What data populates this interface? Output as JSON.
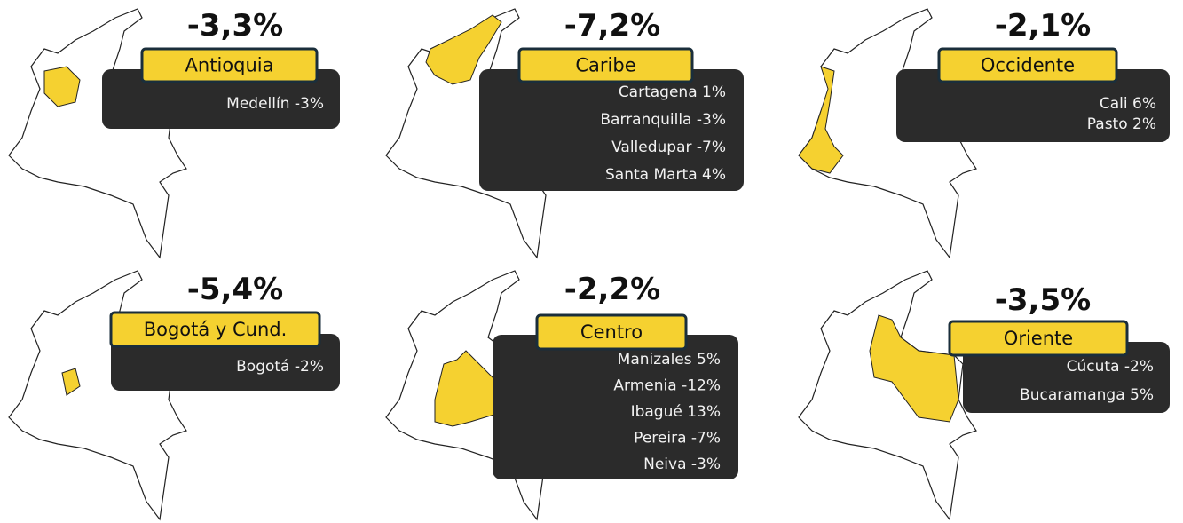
{
  "panels": [
    {
      "change": "-3,3%",
      "region": "Antioquia",
      "cities": [
        "Medellín -3%"
      ]
    },
    {
      "change": "-7,2%",
      "region": "Caribe",
      "cities": [
        "Cartagena 1%",
        "Barranquilla -3%",
        "Valledupar -7%",
        "Santa Marta 4%"
      ]
    },
    {
      "change": "-2,1%",
      "region": "Occidente",
      "cities": [
        "Cali 6%",
        "Pasto 2%"
      ]
    },
    {
      "change": "-5,4%",
      "region": "Bogotá y Cund.",
      "cities": [
        "Bogotá -2%"
      ]
    },
    {
      "change": "-2,2%",
      "region": "Centro",
      "cities": [
        "Manizales 5%",
        "Armenia -12%",
        "Ibagué 13%",
        "Pereira -7%",
        "Neiva -3%"
      ]
    },
    {
      "change": "-3,5%",
      "region": "Oriente",
      "cities": [
        "Cúcuta -2%",
        "Bucaramanga 5%"
      ]
    }
  ]
}
